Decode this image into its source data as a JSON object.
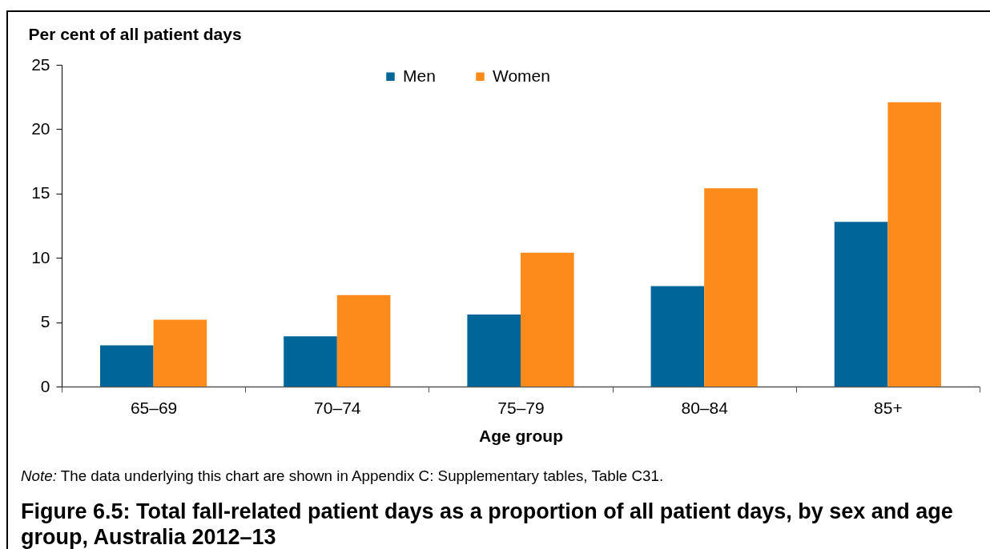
{
  "chart_data": {
    "type": "bar",
    "title": "Figure 6.5: Total fall-related patient days as a proportion of all patient days, by sex and age group, Australia 2012–13",
    "xlabel": "Age group",
    "ylabel": "Per cent of all patient days",
    "annotations": [
      "Note: The data underlying this chart are shown in Appendix C: Supplementary tables, Table C31."
    ],
    "categories": [
      "65–69",
      "70–74",
      "75–79",
      "80–84",
      "85+"
    ],
    "series": [
      {
        "name": "Men",
        "color": "#006699",
        "values": [
          3.2,
          3.9,
          5.6,
          7.8,
          12.8
        ]
      },
      {
        "name": "Women",
        "color": "#fd8b1c",
        "values": [
          5.2,
          7.1,
          10.4,
          15.4,
          22.1
        ]
      }
    ],
    "ylim": [
      0,
      25
    ],
    "yticks": [
      0,
      5,
      10,
      15,
      20,
      25
    ],
    "grid": false,
    "legend": "top"
  }
}
